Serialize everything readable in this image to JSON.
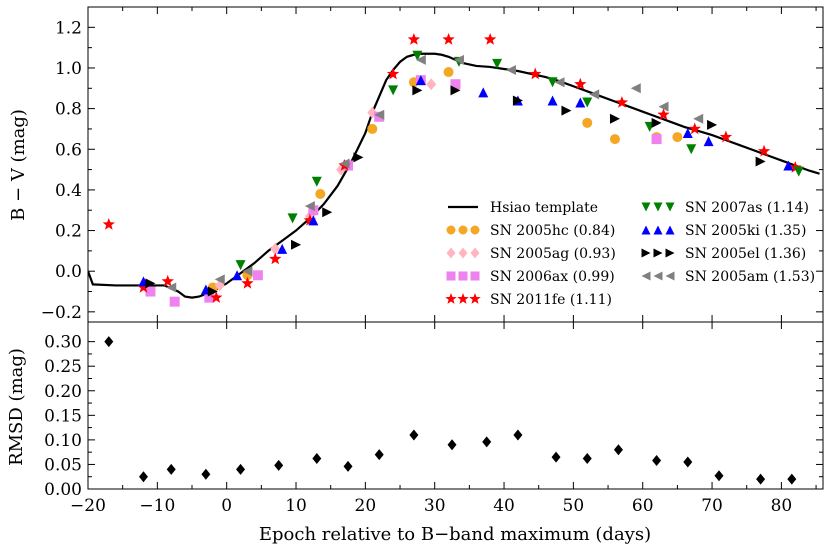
{
  "chart_data": [
    {
      "id": "top",
      "type": "scatter",
      "ylabel": "B − V (mag)",
      "xlim": [
        -20,
        86
      ],
      "ylim": [
        -0.25,
        1.3
      ],
      "yticks": [
        "−0.2",
        "0.0",
        "0.2",
        "0.4",
        "0.6",
        "0.8",
        "1.0",
        "1.2"
      ],
      "ytick_values": [
        -0.2,
        0.0,
        0.2,
        0.4,
        0.6,
        0.8,
        1.0,
        1.2
      ],
      "template": {
        "name": "Hsiao template",
        "x": [
          -20,
          -19.3,
          -16,
          -12,
          -9,
          -7,
          -6,
          -5,
          -4,
          -2,
          0,
          2,
          4,
          6,
          8,
          10,
          12,
          14,
          16,
          18,
          20,
          21,
          22,
          23,
          24,
          25,
          26,
          27,
          28,
          29,
          30,
          31,
          32,
          33,
          34,
          36,
          38,
          40,
          42,
          44,
          46,
          48,
          50,
          52,
          54,
          56,
          58,
          60,
          62,
          64,
          66,
          68,
          70,
          72,
          74,
          76,
          78,
          80,
          82,
          84,
          85.5
        ],
        "y": [
          0.0,
          -0.065,
          -0.07,
          -0.07,
          -0.07,
          -0.1,
          -0.125,
          -0.13,
          -0.125,
          -0.1,
          -0.06,
          -0.01,
          0.04,
          0.1,
          0.15,
          0.2,
          0.26,
          0.33,
          0.42,
          0.54,
          0.68,
          0.78,
          0.86,
          0.94,
          0.99,
          1.03,
          1.055,
          1.065,
          1.07,
          1.07,
          1.07,
          1.065,
          1.055,
          1.04,
          1.025,
          1.01,
          1.005,
          0.995,
          0.985,
          0.97,
          0.955,
          0.935,
          0.91,
          0.885,
          0.86,
          0.835,
          0.81,
          0.785,
          0.76,
          0.735,
          0.71,
          0.69,
          0.67,
          0.645,
          0.62,
          0.595,
          0.57,
          0.545,
          0.52,
          0.495,
          0.48
        ]
      },
      "series": [
        {
          "name": "SN 2005hc (0.84)",
          "marker": "circle",
          "color": "#f5a623",
          "x": [
            -2,
            3,
            13.5,
            21,
            27,
            32,
            52,
            56,
            62,
            65
          ],
          "y": [
            -0.08,
            -0.02,
            0.38,
            0.7,
            0.93,
            0.98,
            0.73,
            0.65,
            0.66,
            0.66
          ]
        },
        {
          "name": "SN 2005ag (0.93)",
          "marker": "diamond",
          "color": "#ffb6c1",
          "x": [
            -1,
            7,
            12,
            16.5,
            21,
            29.5
          ],
          "y": [
            -0.07,
            0.11,
            0.27,
            0.5,
            0.78,
            0.92
          ]
        },
        {
          "name": "SN 2006ax (0.99)",
          "marker": "square",
          "color": "#ee82ee",
          "x": [
            -11,
            -7.5,
            -2.5,
            4.5,
            12.5,
            17.5,
            22,
            28,
            33,
            62
          ],
          "y": [
            -0.1,
            -0.15,
            -0.13,
            -0.02,
            0.3,
            0.52,
            0.76,
            0.94,
            0.92,
            0.65
          ]
        },
        {
          "name": "SN 2011fe (1.11)",
          "marker": "star",
          "color": "#ff0000",
          "x": [
            -17,
            -12,
            -8.5,
            -1.5,
            3,
            7,
            12,
            17,
            24,
            27,
            32,
            38,
            44.5,
            51,
            57,
            63,
            67.5,
            72,
            77.5,
            82
          ],
          "y": [
            0.23,
            -0.08,
            -0.05,
            -0.13,
            -0.06,
            0.06,
            0.25,
            0.52,
            0.97,
            1.14,
            1.14,
            1.14,
            0.97,
            0.92,
            0.83,
            0.77,
            0.7,
            0.66,
            0.59,
            0.51
          ]
        },
        {
          "name": "SN 2007as (1.14)",
          "marker": "triangle-down",
          "color": "#008000",
          "x": [
            2,
            9.5,
            13,
            24,
            27.5,
            33.5,
            39,
            47,
            52,
            61,
            67,
            82.5
          ],
          "y": [
            0.03,
            0.26,
            0.44,
            0.89,
            1.06,
            1.03,
            1.02,
            0.93,
            0.83,
            0.71,
            0.6,
            0.49
          ]
        },
        {
          "name": "SN 2005ki (1.35)",
          "marker": "triangle-up",
          "color": "#0000ff",
          "x": [
            -12,
            -3,
            1.5,
            8,
            12.5,
            28,
            37,
            42,
            47,
            51,
            66.5,
            69.5,
            81
          ],
          "y": [
            -0.05,
            -0.09,
            -0.02,
            0.11,
            0.25,
            0.94,
            0.88,
            0.84,
            0.84,
            0.83,
            0.68,
            0.64,
            0.52
          ]
        },
        {
          "name": "SN 2005el (1.36)",
          "marker": "triangle-right",
          "color": "#000000",
          "x": [
            -11,
            -2,
            10,
            14.5,
            19,
            27.5,
            33,
            42,
            49,
            56,
            62,
            70,
            77
          ],
          "y": [
            -0.06,
            -0.1,
            0.13,
            0.29,
            0.56,
            0.89,
            0.89,
            0.84,
            0.79,
            0.75,
            0.73,
            0.72,
            0.54
          ]
        },
        {
          "name": "SN 2005am (1.53)",
          "marker": "triangle-left",
          "color": "#808080",
          "x": [
            -8,
            -1,
            3,
            12,
            17,
            22,
            28,
            33.5,
            41,
            48,
            53,
            59,
            63,
            68
          ],
          "y": [
            -0.08,
            -0.04,
            0.0,
            0.32,
            0.53,
            0.77,
            1.04,
            1.04,
            0.99,
            0.93,
            0.87,
            0.9,
            0.81,
            0.75
          ]
        }
      ],
      "legend": {
        "location": "lower-right",
        "entries": [
          "Hsiao template",
          "SN 2005hc (0.84)",
          "SN 2005ag (0.93)",
          "SN 2006ax (0.99)",
          "SN 2011fe (1.11)",
          "SN 2007as (1.14)",
          "SN 2005ki (1.35)",
          "SN 2005el (1.36)",
          "SN 2005am (1.53)"
        ]
      }
    },
    {
      "id": "bottom",
      "type": "scatter",
      "ylabel": "RMSD (mag)",
      "xlabel": "Epoch relative to B−band maximum (days)",
      "xlim": [
        -20,
        86
      ],
      "ylim": [
        0.0,
        0.34
      ],
      "yticks": [
        "0.00",
        "0.05",
        "0.10",
        "0.15",
        "0.20",
        "0.25",
        "0.30"
      ],
      "ytick_values": [
        0.0,
        0.05,
        0.1,
        0.15,
        0.2,
        0.25,
        0.3
      ],
      "xticks": [
        "−20",
        "−10",
        "0",
        "10",
        "20",
        "30",
        "40",
        "50",
        "60",
        "70",
        "80"
      ],
      "xtick_values": [
        -20,
        -10,
        0,
        10,
        20,
        30,
        40,
        50,
        60,
        70,
        80
      ],
      "series": [
        {
          "name": "RMSD",
          "marker": "diamond",
          "color": "#000000",
          "x": [
            -17,
            -12,
            -8,
            -3,
            2,
            7.5,
            13,
            17.5,
            22,
            27,
            32.5,
            37.5,
            42,
            47.5,
            52,
            56.5,
            62,
            66.5,
            71,
            77,
            81.5
          ],
          "y": [
            0.3,
            0.025,
            0.04,
            0.03,
            0.04,
            0.048,
            0.062,
            0.046,
            0.07,
            0.11,
            0.09,
            0.096,
            0.11,
            0.065,
            0.062,
            0.08,
            0.058,
            0.055,
            0.027,
            0.02,
            0.02
          ]
        }
      ]
    }
  ]
}
